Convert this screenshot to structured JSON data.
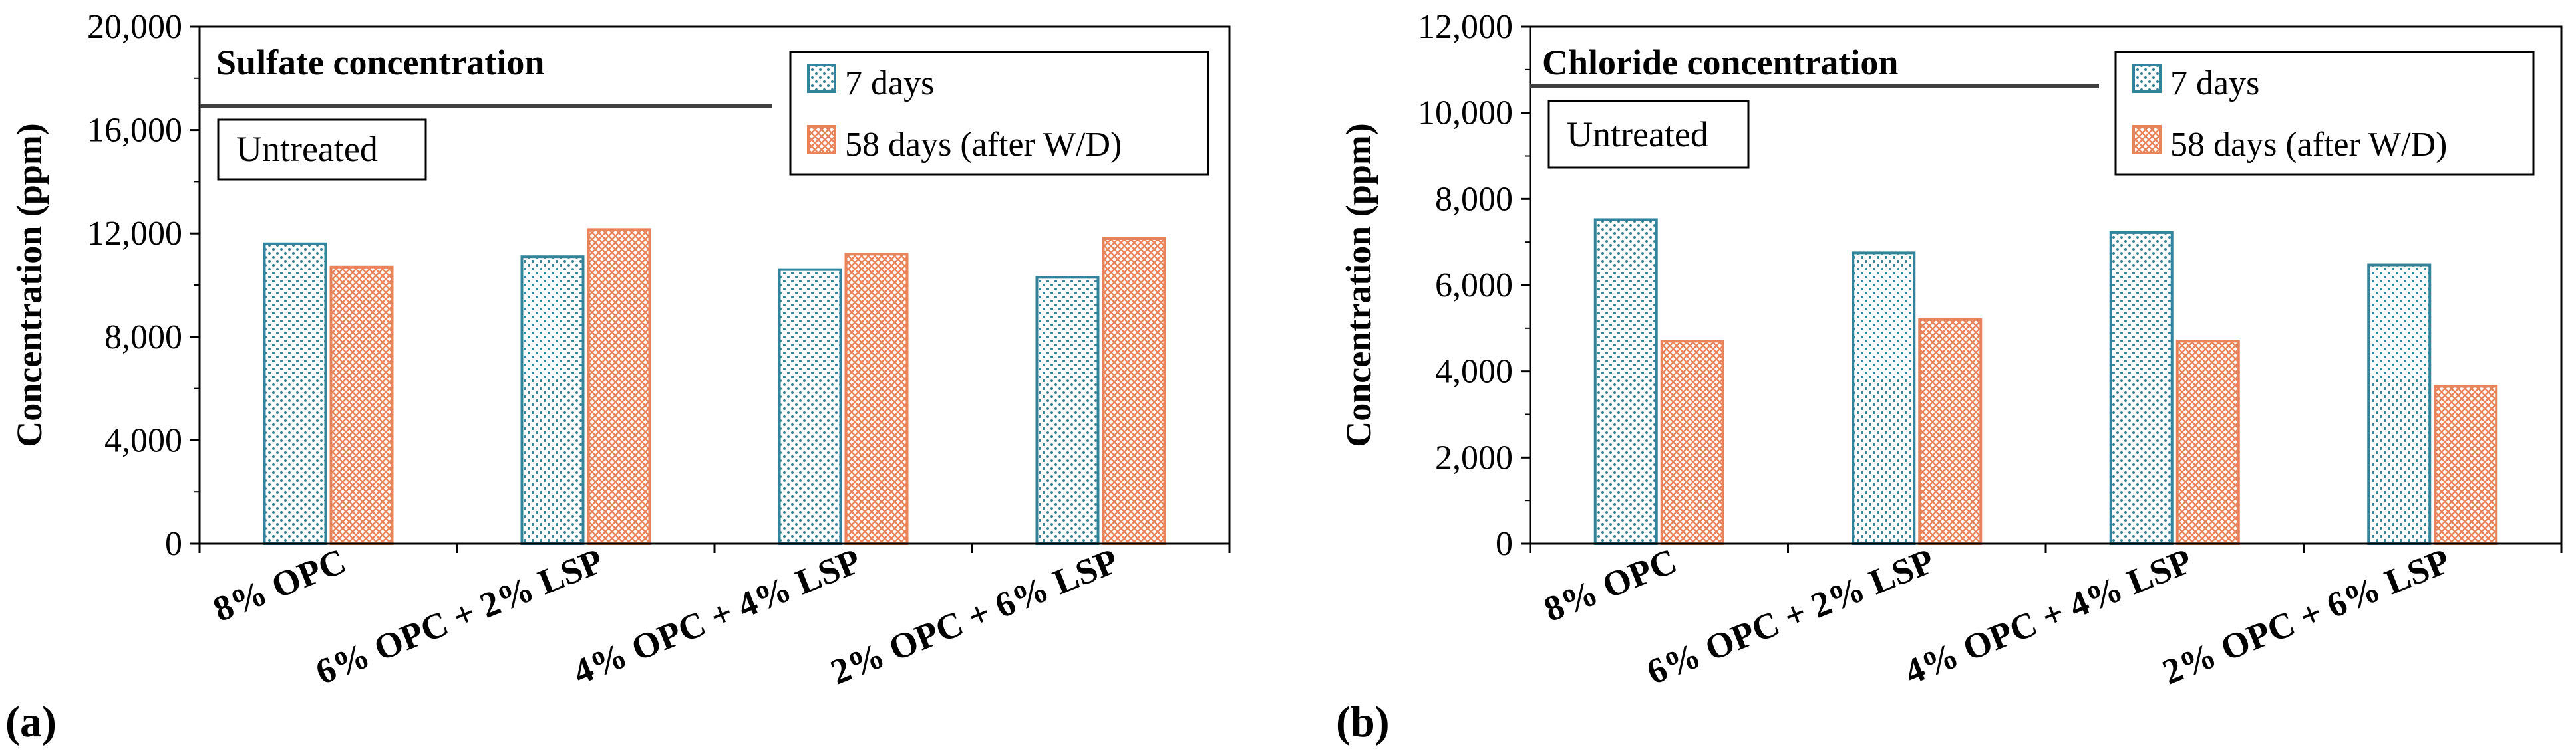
{
  "chart_data": [
    {
      "type": "bar",
      "panel_label": "(a)",
      "title": "Sulfate concentration",
      "annotation": "Untreated",
      "ylabel": "Concentration (ppm)",
      "xlabel": "",
      "categories": [
        "8% OPC",
        "6% OPC + 2% LSP",
        "4% OPC + 4% LSP",
        "2% OPC + 6% LSP"
      ],
      "ylim": [
        0,
        20000
      ],
      "yticks": [
        0,
        4000,
        8000,
        12000,
        16000,
        20000
      ],
      "ytick_labels": [
        "0",
        "4,000",
        "8,000",
        "12,000",
        "16,000",
        "20,000"
      ],
      "series": [
        {
          "name": "7 days",
          "values": [
            11600,
            11100,
            10600,
            10300
          ],
          "color": "#31849B",
          "pattern": "dots"
        },
        {
          "name": "58 days (after W/D)",
          "values": [
            10700,
            12150,
            11200,
            11800
          ],
          "color": "#E9835A",
          "pattern": "crosshatch"
        }
      ],
      "legend": "top-right",
      "grid": false
    },
    {
      "type": "bar",
      "panel_label": "(b)",
      "title": "Chloride concentration",
      "annotation": "Untreated",
      "ylabel": "Concentration (ppm)",
      "xlabel": "",
      "categories": [
        "8% OPC",
        "6% OPC + 2% LSP",
        "4% OPC + 4% LSP",
        "2% OPC + 6% LSP"
      ],
      "ylim": [
        0,
        12000
      ],
      "yticks": [
        0,
        2000,
        4000,
        6000,
        8000,
        10000,
        12000
      ],
      "ytick_labels": [
        "0",
        "2,000",
        "4,000",
        "6,000",
        "8,000",
        "10,000",
        "12,000"
      ],
      "series": [
        {
          "name": "7 days",
          "values": [
            7520,
            6750,
            7220,
            6470
          ],
          "color": "#31849B",
          "pattern": "dots"
        },
        {
          "name": "58 days (after W/D)",
          "values": [
            4700,
            5200,
            4700,
            3650
          ],
          "color": "#E9835A",
          "pattern": "crosshatch"
        }
      ],
      "legend": "top-right",
      "grid": false
    }
  ]
}
